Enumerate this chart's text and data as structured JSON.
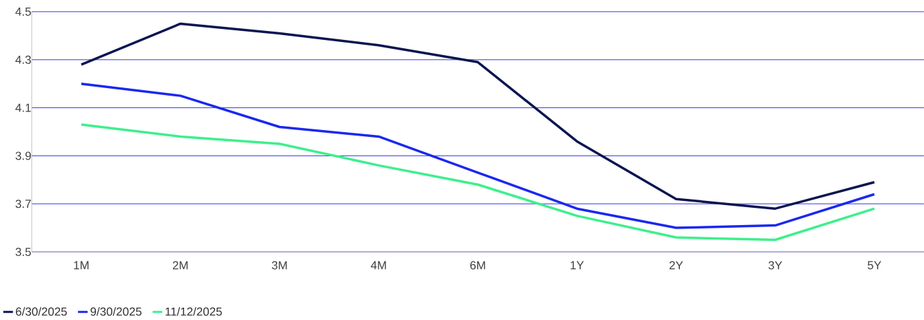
{
  "chart_data": {
    "type": "line",
    "categories": [
      "1M",
      "2M",
      "3M",
      "4M",
      "6M",
      "1Y",
      "2Y",
      "3Y",
      "5Y"
    ],
    "series": [
      {
        "name": "6/30/2025",
        "color": "#0b1551",
        "values": [
          4.28,
          4.45,
          4.41,
          4.36,
          4.29,
          3.96,
          3.72,
          3.68,
          3.79
        ]
      },
      {
        "name": "9/30/2025",
        "color": "#1a28f0",
        "values": [
          4.2,
          4.15,
          4.02,
          3.98,
          3.83,
          3.68,
          3.6,
          3.61,
          3.74
        ]
      },
      {
        "name": "11/12/2025",
        "color": "#3cf08c",
        "values": [
          4.03,
          3.98,
          3.95,
          3.86,
          3.78,
          3.65,
          3.56,
          3.55,
          3.68
        ]
      }
    ],
    "ylim": [
      3.5,
      4.5
    ],
    "yticks": [
      3.5,
      3.7,
      3.9,
      4.1,
      4.3,
      4.5
    ],
    "grid": "y",
    "legend": "bottom left",
    "marker": "none",
    "line_style": "solid"
  }
}
